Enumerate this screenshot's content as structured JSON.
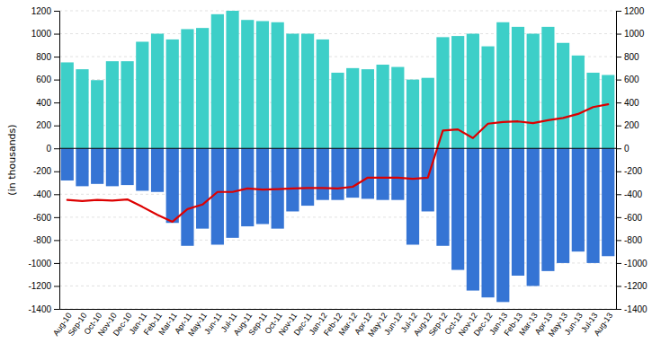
{
  "chart_data": {
    "type": "bar",
    "categories": [
      "Aug-10",
      "Sep-10",
      "Oct-10",
      "Nov-10",
      "Dec-10",
      "Jan-11",
      "Feb-11",
      "Mar-11",
      "Apr-11",
      "May-11",
      "Jun-11",
      "Jul-11",
      "Aug-11",
      "Sep-11",
      "Oct-11",
      "Nov-11",
      "Dec-11",
      "Jan-12",
      "Feb-12",
      "Mar-12",
      "Apr-12",
      "May-12",
      "Jun-12",
      "Jul-12",
      "Aug-12",
      "Sep-12",
      "Oct-12",
      "Nov-12",
      "Dec-12",
      "Jan-13",
      "Feb-13",
      "Mar-13",
      "Apr-13",
      "May-13",
      "Jun-13",
      "Jul-13",
      "Aug-13"
    ],
    "series": [
      {
        "type": "bar",
        "color": "#3dcfc8",
        "values": [
          750,
          690,
          595,
          760,
          760,
          930,
          1000,
          950,
          1040,
          1050,
          1170,
          1200,
          1120,
          1110,
          1100,
          1000,
          1000,
          950,
          660,
          700,
          690,
          730,
          710,
          600,
          615,
          970,
          980,
          1000,
          890,
          1100,
          1060,
          1000,
          1060,
          920,
          810,
          660,
          640
        ]
      },
      {
        "type": "bar",
        "color": "#3574d4",
        "values": [
          -280,
          -330,
          -310,
          -330,
          -320,
          -370,
          -380,
          -650,
          -850,
          -700,
          -840,
          -780,
          -680,
          -660,
          -700,
          -550,
          -500,
          -450,
          -450,
          -430,
          -440,
          -450,
          -450,
          -840,
          -550,
          -850,
          -1060,
          -1240,
          -1300,
          -1340,
          -1110,
          -1200,
          -1070,
          -1000,
          -900,
          -1000,
          -940
        ]
      },
      {
        "type": "line",
        "color": "#dd0000",
        "values": [
          -450,
          -460,
          -450,
          -455,
          -445,
          -510,
          -580,
          -640,
          -530,
          -490,
          -380,
          -380,
          -350,
          -360,
          -355,
          -350,
          -345,
          -345,
          -350,
          -335,
          -255,
          -255,
          -255,
          -265,
          -255,
          155,
          165,
          90,
          215,
          230,
          235,
          220,
          245,
          265,
          300,
          360,
          385
        ]
      }
    ],
    "y_label": "(in thousands)",
    "ylim": [
      -1400,
      1200
    ],
    "yticks": [
      -1400,
      -1200,
      -1000,
      -800,
      -600,
      -400,
      -200,
      0,
      200,
      400,
      600,
      800,
      1000,
      1200
    ],
    "y2lim": [
      -1400,
      1200
    ],
    "y2ticks": [
      -1400,
      -1200,
      -1000,
      -800,
      -600,
      -400,
      -200,
      0,
      200,
      400,
      600,
      800,
      1000,
      1200
    ],
    "grid": true
  }
}
